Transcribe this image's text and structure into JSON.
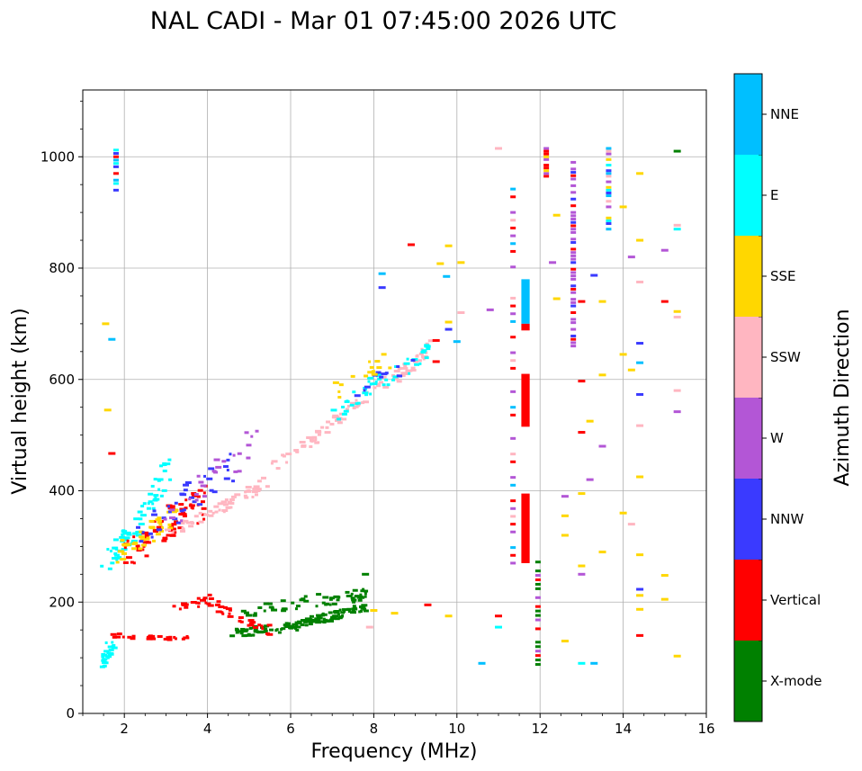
{
  "chart_data": {
    "type": "scatter",
    "title": "NAL CADI - Mar 01 07:45:00 2026 UTC",
    "xlabel": "Frequency (MHz)",
    "ylabel": "Virtual height (km)",
    "xlim": [
      1.0,
      16.0
    ],
    "ylim": [
      0,
      1120
    ],
    "xticks": [
      2,
      4,
      6,
      8,
      10,
      12,
      14,
      16
    ],
    "yticks": [
      0,
      200,
      400,
      600,
      800,
      1000
    ],
    "grid": true,
    "colorbar": {
      "label": "Azimuth Direction",
      "categories": [
        {
          "name": "X-mode",
          "color": "#008000"
        },
        {
          "name": "Vertical",
          "color": "#ff0000"
        },
        {
          "name": "NNW",
          "color": "#3a3aff"
        },
        {
          "name": "W",
          "color": "#b356d6"
        },
        {
          "name": "SSW",
          "color": "#ffb6c1"
        },
        {
          "name": "SSE",
          "color": "#ffd700"
        },
        {
          "name": "E",
          "color": "#00ffff"
        },
        {
          "name": "NNE",
          "color": "#00bfff"
        }
      ]
    },
    "traces": [
      {
        "cls": "X-mode",
        "freq": [
          4.6,
          5.0,
          5.5,
          6.0,
          6.5,
          7.0,
          7.5,
          7.8
        ],
        "height": [
          145,
          148,
          150,
          155,
          165,
          175,
          185,
          190
        ],
        "spread": 8,
        "n": 120
      },
      {
        "cls": "X-mode",
        "freq": [
          4.8,
          5.5,
          6.0,
          6.5,
          7.0,
          7.5,
          7.8
        ],
        "height": [
          185,
          190,
          200,
          200,
          205,
          210,
          215
        ],
        "spread": 12,
        "n": 60
      },
      {
        "cls": "Vertical",
        "freq": [
          3.2,
          3.6,
          4.0,
          4.5,
          5.0,
          5.5
        ],
        "height": [
          185,
          195,
          205,
          180,
          160,
          150
        ],
        "spread": 10,
        "n": 45
      },
      {
        "cls": "Vertical",
        "freq": [
          1.8,
          2.2,
          2.6,
          3.0,
          3.5
        ],
        "height": [
          140,
          138,
          136,
          136,
          138
        ],
        "spread": 4,
        "n": 25
      },
      {
        "cls": "E",
        "freq": [
          1.45,
          1.6,
          1.75
        ],
        "height": [
          95,
          115,
          130
        ],
        "spread": 12,
        "n": 25
      },
      {
        "cls": "E",
        "freq": [
          1.5,
          1.9,
          2.3,
          2.7,
          3.1
        ],
        "height": [
          275,
          300,
          330,
          390,
          450
        ],
        "spread": 25,
        "n": 70
      },
      {
        "cls": "Vertical",
        "freq": [
          2.0,
          2.5,
          3.0,
          3.5,
          4.0
        ],
        "height": [
          280,
          310,
          340,
          360,
          380
        ],
        "spread": 30,
        "n": 70
      },
      {
        "cls": "SSE",
        "freq": [
          1.8,
          2.3,
          2.8,
          3.3
        ],
        "height": [
          285,
          310,
          335,
          360
        ],
        "spread": 20,
        "n": 40
      },
      {
        "cls": "SSW",
        "freq": [
          3.0,
          3.5,
          4.0,
          4.5,
          5.0,
          5.5
        ],
        "height": [
          320,
          340,
          355,
          375,
          395,
          420
        ],
        "spread": 10,
        "n": 55
      },
      {
        "cls": "NNW",
        "freq": [
          2.2,
          2.8,
          3.4,
          4.0,
          4.6
        ],
        "height": [
          300,
          340,
          380,
          420,
          450
        ],
        "spread": 30,
        "n": 35
      },
      {
        "cls": "W",
        "freq": [
          3.0,
          3.8,
          4.5,
          5.2
        ],
        "height": [
          350,
          400,
          450,
          500
        ],
        "spread": 30,
        "n": 25
      },
      {
        "cls": "SSW",
        "freq": [
          5.5,
          6.0,
          6.5,
          7.0,
          7.5,
          8.0,
          8.5,
          9.0,
          9.4
        ],
        "height": [
          440,
          465,
          490,
          520,
          550,
          580,
          605,
          630,
          660
        ],
        "spread": 12,
        "n": 90
      },
      {
        "cls": "E",
        "freq": [
          7.0,
          7.5,
          8.0,
          8.5,
          9.0,
          9.4
        ],
        "height": [
          530,
          560,
          590,
          610,
          630,
          665
        ],
        "spread": 15,
        "n": 45
      },
      {
        "cls": "NNW",
        "freq": [
          7.5,
          8.0,
          8.5,
          9.0
        ],
        "height": [
          580,
          600,
          615,
          630
        ],
        "spread": 15,
        "n": 12
      },
      {
        "cls": "SSE",
        "freq": [
          6.5,
          7.5,
          8.5
        ],
        "height": [
          560,
          600,
          640
        ],
        "spread": 20,
        "n": 15
      }
    ],
    "blocks": [
      {
        "cls": "NNE",
        "f0": 11.55,
        "f1": 11.75,
        "h0": 700,
        "h1": 780
      },
      {
        "cls": "Vertical",
        "f0": 11.55,
        "f1": 11.75,
        "h0": 688,
        "h1": 700
      },
      {
        "cls": "Vertical",
        "f0": 11.55,
        "f1": 11.75,
        "h0": 270,
        "h1": 395
      },
      {
        "cls": "Vertical",
        "f0": 11.55,
        "f1": 11.75,
        "h0": 515,
        "h1": 610
      }
    ],
    "columns": [
      {
        "freq": 1.8,
        "h0": 940,
        "h1": 1015,
        "step": 6,
        "classes": [
          "NNW",
          "E",
          "NNE",
          "Vertical"
        ]
      },
      {
        "freq": 11.35,
        "h0": 270,
        "h1": 960,
        "step": 14,
        "classes": [
          "W",
          "Vertical",
          "NNE",
          "W",
          "Vertical",
          "SSW"
        ]
      },
      {
        "freq": 11.95,
        "h0": 88,
        "h1": 285,
        "step": 8,
        "classes": [
          "X-mode",
          "X-mode",
          "Vertical",
          "W"
        ]
      },
      {
        "freq": 12.15,
        "h0": 955,
        "h1": 1015,
        "step": 5,
        "classes": [
          "Vertical",
          "W",
          "SSE",
          "Vertical"
        ]
      },
      {
        "freq": 12.8,
        "h0": 660,
        "h1": 1000,
        "step": 6,
        "classes": [
          "W",
          "W",
          "Vertical",
          "NNW",
          "W"
        ]
      },
      {
        "freq": 13.65,
        "h0": 865,
        "h1": 1015,
        "step": 5,
        "classes": [
          "NNE",
          "NNW",
          "E",
          "SSE",
          "W",
          "SSW"
        ]
      }
    ],
    "scatter_extra": [
      [
        1.55,
        700,
        "SSE"
      ],
      [
        1.6,
        545,
        "SSE"
      ],
      [
        1.7,
        467,
        "Vertical"
      ],
      [
        1.7,
        672,
        "NNE"
      ],
      [
        8.2,
        790,
        "NNE"
      ],
      [
        8.2,
        765,
        "NNW"
      ],
      [
        8.9,
        842,
        "Vertical"
      ],
      [
        9.6,
        808,
        "SSE"
      ],
      [
        9.75,
        785,
        "NNE"
      ],
      [
        9.8,
        840,
        "SSE"
      ],
      [
        9.8,
        690,
        "NNW"
      ],
      [
        10.8,
        725,
        "W"
      ],
      [
        11.0,
        1015,
        "SSW"
      ],
      [
        11.0,
        175,
        "Vertical"
      ],
      [
        10.6,
        90,
        "NNE"
      ],
      [
        11.0,
        155,
        "E"
      ],
      [
        12.4,
        745,
        "SSE"
      ],
      [
        12.4,
        895,
        "SSE"
      ],
      [
        12.3,
        810,
        "W"
      ],
      [
        12.6,
        390,
        "W"
      ],
      [
        12.6,
        320,
        "SSE"
      ],
      [
        12.6,
        355,
        "SSE"
      ],
      [
        12.6,
        130,
        "SSE"
      ],
      [
        13.0,
        740,
        "Vertical"
      ],
      [
        13.0,
        597,
        "Vertical"
      ],
      [
        13.0,
        505,
        "Vertical"
      ],
      [
        13.0,
        395,
        "SSE"
      ],
      [
        13.0,
        265,
        "SSE"
      ],
      [
        13.0,
        250,
        "W"
      ],
      [
        13.0,
        90,
        "E"
      ],
      [
        13.2,
        525,
        "SSE"
      ],
      [
        13.2,
        420,
        "W"
      ],
      [
        13.3,
        787,
        "NNW"
      ],
      [
        13.5,
        740,
        "SSE"
      ],
      [
        13.5,
        608,
        "SSE"
      ],
      [
        13.5,
        480,
        "W"
      ],
      [
        13.5,
        290,
        "SSE"
      ],
      [
        13.3,
        90,
        "NNE"
      ],
      [
        14.0,
        910,
        "SSE"
      ],
      [
        14.0,
        645,
        "SSE"
      ],
      [
        14.0,
        360,
        "SSE"
      ],
      [
        14.2,
        820,
        "W"
      ],
      [
        14.2,
        617,
        "SSE"
      ],
      [
        14.2,
        340,
        "SSW"
      ],
      [
        14.4,
        970,
        "SSE"
      ],
      [
        14.4,
        850,
        "SSE"
      ],
      [
        14.4,
        775,
        "SSW"
      ],
      [
        14.4,
        665,
        "NNW"
      ],
      [
        14.4,
        630,
        "NNE"
      ],
      [
        14.4,
        573,
        "NNW"
      ],
      [
        14.4,
        517,
        "SSW"
      ],
      [
        14.4,
        425,
        "SSE"
      ],
      [
        14.4,
        285,
        "SSE"
      ],
      [
        14.4,
        223,
        "NNW"
      ],
      [
        14.4,
        212,
        "SSE"
      ],
      [
        14.4,
        187,
        "SSE"
      ],
      [
        14.4,
        140,
        "Vertical"
      ],
      [
        15.0,
        832,
        "W"
      ],
      [
        15.0,
        740,
        "Vertical"
      ],
      [
        15.0,
        248,
        "SSE"
      ],
      [
        15.0,
        205,
        "SSE"
      ],
      [
        15.3,
        1010,
        "X-mode"
      ],
      [
        15.3,
        877,
        "SSW"
      ],
      [
        15.3,
        870,
        "E"
      ],
      [
        15.3,
        722,
        "SSE"
      ],
      [
        15.3,
        712,
        "SSW"
      ],
      [
        15.3,
        580,
        "SSW"
      ],
      [
        15.3,
        542,
        "W"
      ],
      [
        15.3,
        103,
        "SSE"
      ],
      [
        9.3,
        195,
        "Vertical"
      ],
      [
        9.8,
        175,
        "SSE"
      ],
      [
        8.5,
        180,
        "SSE"
      ],
      [
        7.9,
        155,
        "SSW"
      ],
      [
        8.0,
        185,
        "SSE"
      ],
      [
        7.8,
        250,
        "X-mode"
      ],
      [
        10.1,
        810,
        "SSE"
      ],
      [
        10.1,
        720,
        "SSW"
      ],
      [
        10.0,
        668,
        "NNE"
      ],
      [
        9.8,
        703,
        "SSE"
      ],
      [
        9.5,
        670,
        "Vertical"
      ],
      [
        9.5,
        632,
        "Vertical"
      ]
    ]
  }
}
